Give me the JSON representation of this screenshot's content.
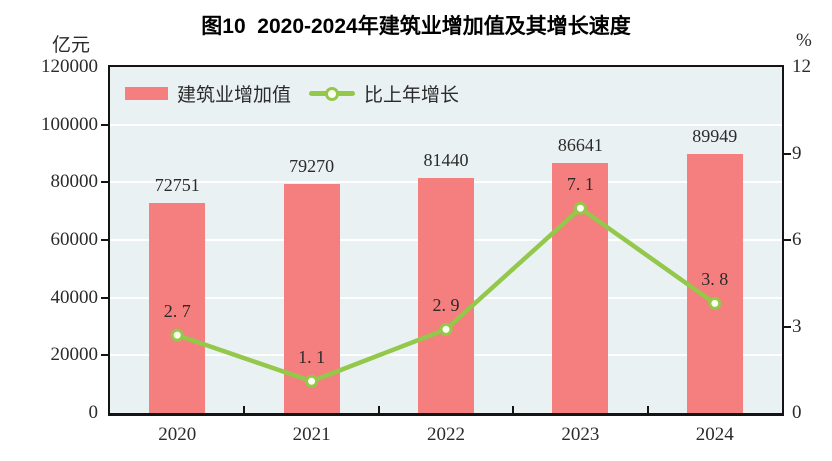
{
  "header": {
    "title": "图10  2020-2024年建筑业增加值及其增长速度"
  },
  "axes": {
    "left_unit": "亿元",
    "right_unit": "%"
  },
  "legend": {
    "bar_label": "建筑业增加值",
    "line_label": "比上年增长"
  },
  "colors": {
    "bar": "#F57E7E",
    "line": "#93C84A",
    "marker_fill": "#FDFDF0",
    "plot_bg": "#E9F1F2",
    "grid": "#FFFFFF",
    "axis": "#141414",
    "text": "#2B2B2B"
  },
  "chart_data": {
    "type": "bar",
    "title": "图10  2020-2024年建筑业增加值及其增长速度",
    "categories": [
      "2020",
      "2021",
      "2022",
      "2023",
      "2024"
    ],
    "series": [
      {
        "name": "建筑业增加值",
        "type": "bar",
        "axis": "left",
        "values": [
          72751,
          79270,
          81440,
          86641,
          89949
        ]
      },
      {
        "name": "比上年增长",
        "type": "line",
        "axis": "right",
        "values": [
          2.7,
          1.1,
          2.9,
          7.1,
          3.8
        ]
      }
    ],
    "y_left": {
      "label": "亿元",
      "min": 0,
      "max": 120000,
      "ticks": [
        0,
        20000,
        40000,
        60000,
        80000,
        100000,
        120000
      ]
    },
    "y_right": {
      "label": "%",
      "min": 0,
      "max": 12,
      "ticks": [
        0,
        3,
        6,
        9,
        12
      ],
      "side_ticks_marked": [
        3,
        6,
        9
      ]
    },
    "grid": "horizontal-white-lines-at-left-ticks",
    "legend_position": "top-left-inside",
    "data_labels": "shown-above-bars-and-points"
  }
}
